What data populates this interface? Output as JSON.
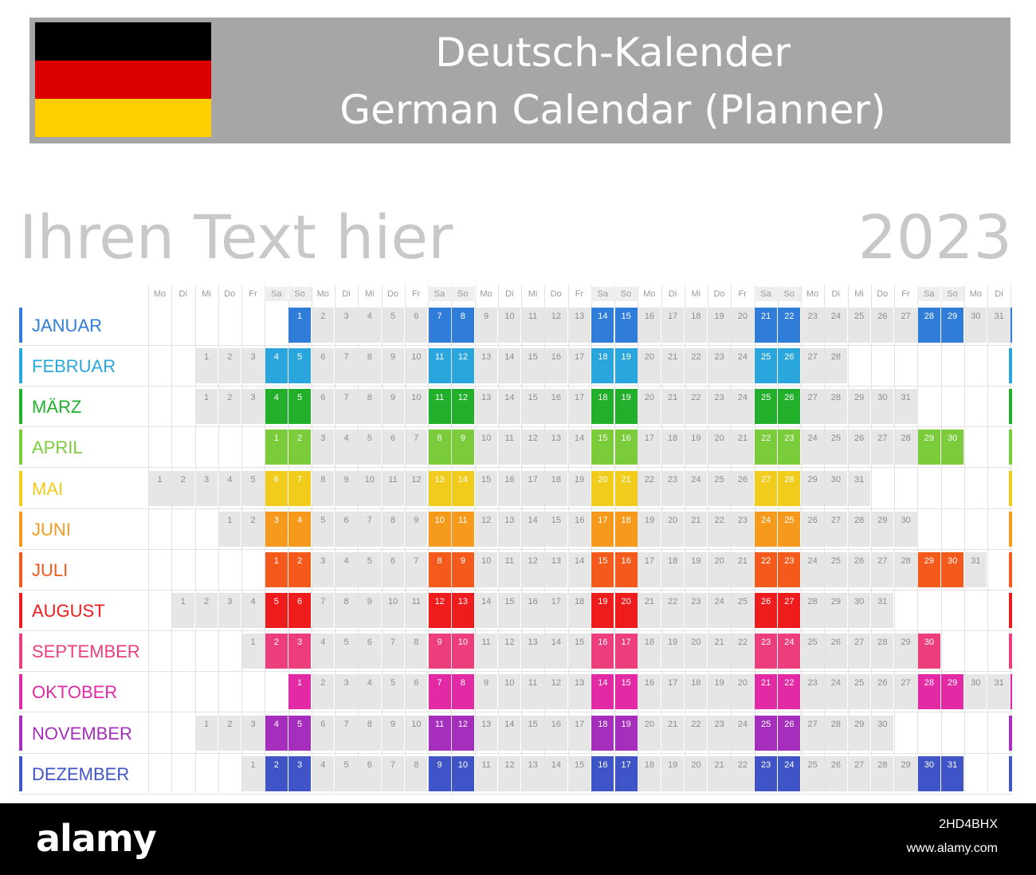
{
  "header": {
    "title_de": "Deutsch-Kalender",
    "title_en": "German Calendar (Planner)"
  },
  "flag": {
    "colors": [
      "#000000",
      "#dd0000",
      "#ffce00"
    ]
  },
  "subtitle": "Ihren Text hier",
  "year": "2023",
  "weekday_header": [
    "Mo",
    "Di",
    "Mi",
    "Do",
    "Fr",
    "Sa",
    "So",
    "Mo",
    "Di",
    "Mi",
    "Do",
    "Fr",
    "Sa",
    "So",
    "Mo",
    "Di",
    "Mi",
    "Do",
    "Fr",
    "Sa",
    "So",
    "Mo",
    "Di",
    "Mi",
    "Do",
    "Fr",
    "Sa",
    "So",
    "Mo",
    "Di",
    "Mi",
    "Do",
    "Fr",
    "Sa",
    "So",
    "Mo",
    "Di"
  ],
  "months": [
    {
      "name": "JANUAR",
      "color": "#2f7dd8",
      "offset": 6,
      "days": 31
    },
    {
      "name": "FEBRUAR",
      "color": "#2ba6dc",
      "offset": 2,
      "days": 28
    },
    {
      "name": "MÄRZ",
      "color": "#22b02c",
      "offset": 2,
      "days": 31
    },
    {
      "name": "APRIL",
      "color": "#7acc3b",
      "offset": 5,
      "days": 30
    },
    {
      "name": "MAI",
      "color": "#f1cc1d",
      "offset": 0,
      "days": 31
    },
    {
      "name": "JUNI",
      "color": "#f59a1c",
      "offset": 3,
      "days": 30
    },
    {
      "name": "JULI",
      "color": "#f35a1b",
      "offset": 5,
      "days": 31
    },
    {
      "name": "AUGUST",
      "color": "#ee1c1c",
      "offset": 1,
      "days": 31
    },
    {
      "name": "SEPTEMBER",
      "color": "#ec3d7d",
      "offset": 4,
      "days": 30
    },
    {
      "name": "OKTOBER",
      "color": "#e12aa4",
      "offset": 6,
      "days": 31
    },
    {
      "name": "NOVEMBER",
      "color": "#a52fbc",
      "offset": 2,
      "days": 30
    },
    {
      "name": "DEZEMBER",
      "color": "#3f55c7",
      "offset": 4,
      "days": 31
    }
  ],
  "footer": {
    "logo": "alamy",
    "image_id": "2HD4BHX",
    "site": "www.alamy.com"
  }
}
